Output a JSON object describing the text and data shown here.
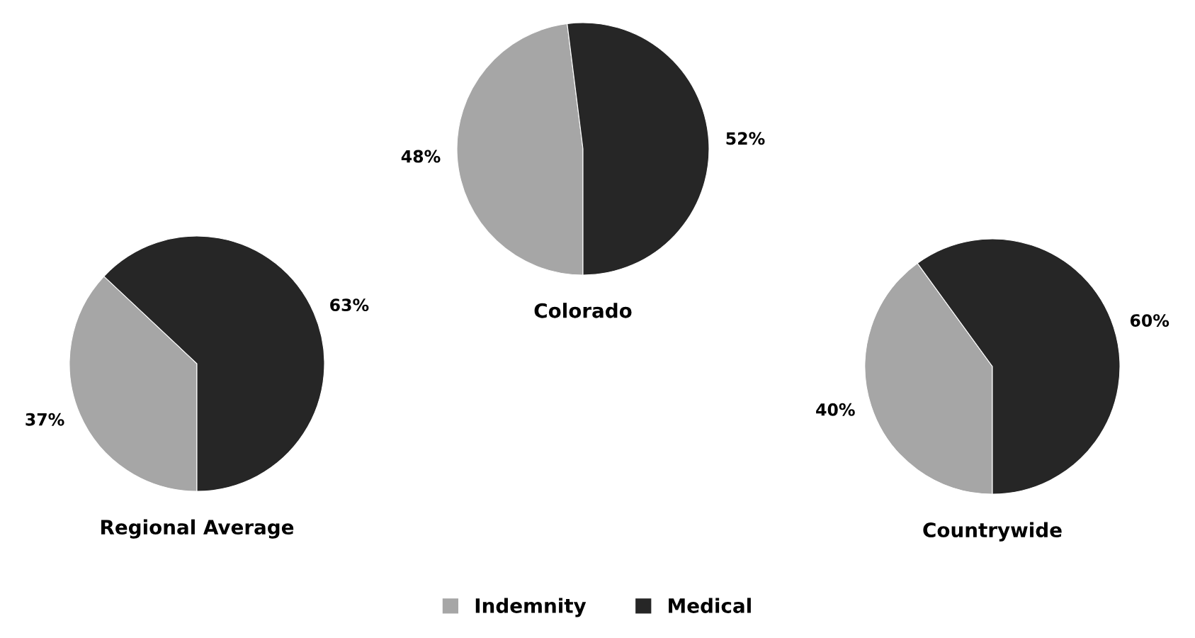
{
  "chart_data": [
    {
      "type": "pie",
      "title": "Colorado",
      "categories": [
        "Indemnity",
        "Medical"
      ],
      "values": [
        48,
        52
      ],
      "colors": [
        "#a6a6a6",
        "#262626"
      ],
      "value_labels": [
        "48%",
        "52%"
      ],
      "legend": "bottom"
    },
    {
      "type": "pie",
      "title": "Regional Average",
      "categories": [
        null,
        null
      ],
      "values": [
        37,
        63
      ],
      "colors": [
        "#a6a6a6",
        "#262626"
      ],
      "value_labels": [
        "37%",
        "63%"
      ]
    },
    {
      "type": "pie",
      "title": "Countrywide",
      "categories": [
        null,
        null
      ],
      "values": [
        40,
        60
      ],
      "colors": [
        "#a6a6a6",
        "#262626"
      ],
      "value_labels": [
        "40%",
        "60%"
      ]
    }
  ]
}
